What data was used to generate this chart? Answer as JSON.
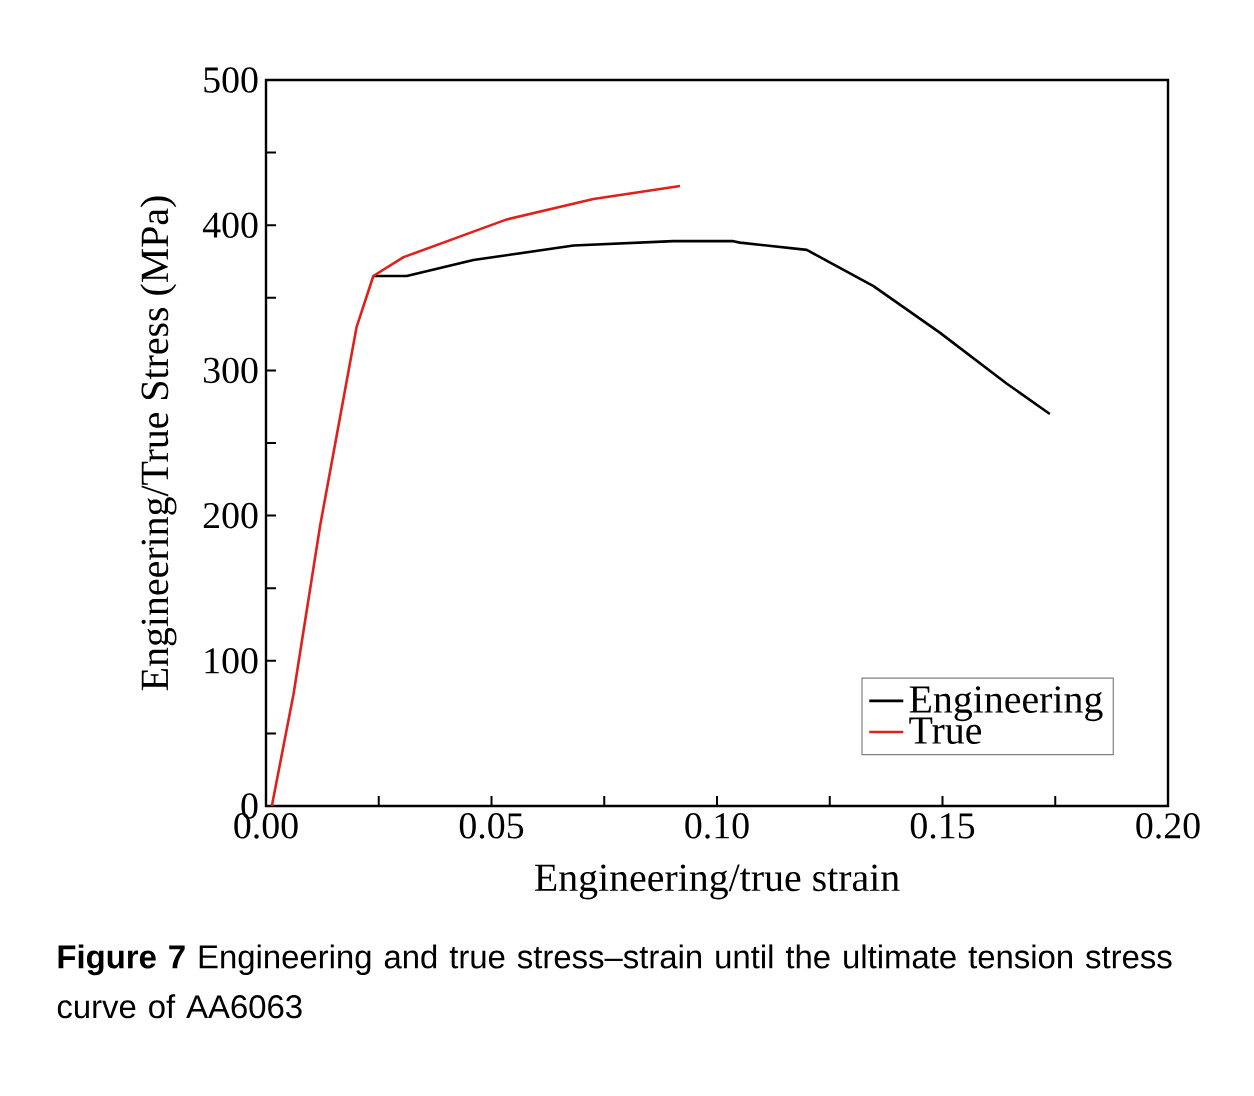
{
  "chart_data": {
    "type": "line",
    "xlabel": "Engineering/true strain",
    "ylabel": "Engineering/True Stress (MPa)",
    "annotations": [
      "**Figure 7** Engineering and true stress–strain until the ultimate tension stress curve of AA6063"
    ],
    "xlim": [
      0,
      0.2
    ],
    "ylim": [
      0,
      500
    ],
    "xticks": [
      {
        "value": 0,
        "label": "0.00"
      },
      {
        "value": 0.025,
        "label": null
      },
      {
        "value": 0.05,
        "label": "0.05"
      },
      {
        "value": 0.075,
        "label": null
      },
      {
        "value": 0.1,
        "label": "0.10"
      },
      {
        "value": 0.125,
        "label": null
      },
      {
        "value": 0.15,
        "label": "0.15"
      },
      {
        "value": 0.175,
        "label": null
      },
      {
        "value": 0.2,
        "label": "0.20"
      }
    ],
    "yticks": [
      0,
      {
        "value": 50,
        "label": null
      },
      100,
      {
        "value": 150,
        "label": null
      },
      200,
      {
        "value": 250,
        "label": null
      },
      300,
      {
        "value": 350,
        "label": null
      },
      400,
      {
        "value": 450,
        "label": null
      },
      500
    ],
    "legend": "bottom right",
    "marker": "none",
    "line_style": "solid",
    "series": [
      {
        "name": "Engineering",
        "color": "#000000",
        "x": [
          0.0238,
          0.0312,
          0.046,
          0.0682,
          0.0903,
          0.1036,
          0.1051,
          0.1199,
          0.1347,
          0.1494,
          0.1642,
          0.1738
        ],
        "values": [
          365,
          365,
          376,
          386,
          389,
          389,
          388,
          383,
          358,
          326,
          291,
          270
        ]
      },
      {
        "name": "True",
        "color": "#e0201b",
        "x": [
          0.0013,
          0.0061,
          0.012,
          0.0201,
          0.0238,
          0.0305,
          0.0534,
          0.0726,
          0.0918
        ],
        "values": [
          0,
          77,
          193,
          330,
          365,
          378,
          404,
          418,
          427
        ]
      }
    ]
  }
}
